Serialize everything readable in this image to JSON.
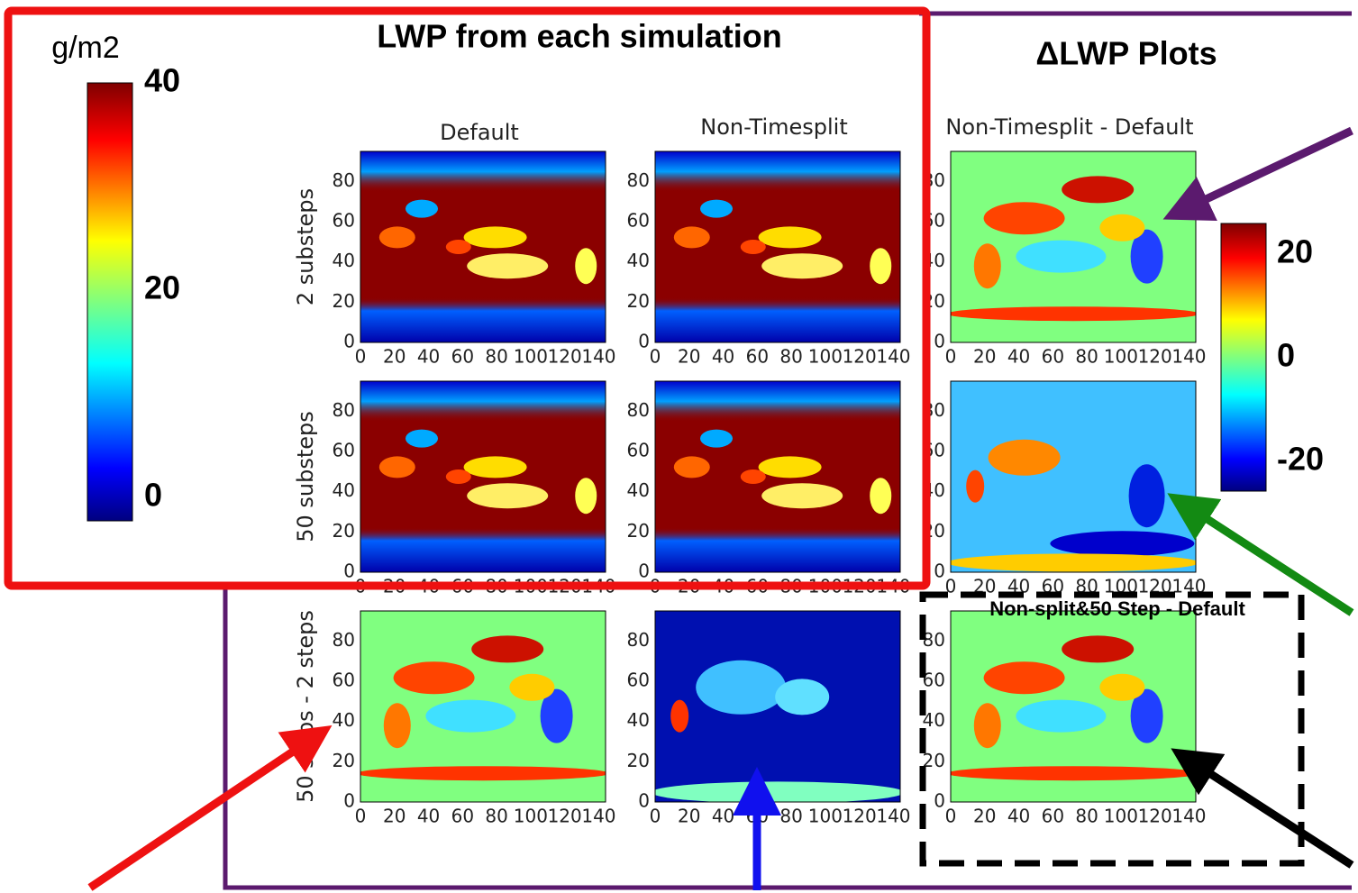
{
  "header": {
    "title": "LWP from each simulation",
    "delta_title": "ΔLWP Plots",
    "unit": "g/m2"
  },
  "colorbars": {
    "left": [
      "40",
      "20",
      "0"
    ],
    "right": [
      "20",
      "0",
      "-20"
    ]
  },
  "columns": [
    "Default",
    "Non-Timesplit",
    "Non-Timesplit - Default"
  ],
  "rows": [
    "2 substeps",
    "50 substeps",
    "50 steps - 2 steps"
  ],
  "axes": {
    "x_ticks": [
      "0",
      "20",
      "40",
      "60",
      "80",
      "100",
      "120",
      "140"
    ],
    "y_ticks": [
      "0",
      "20",
      "40",
      "60",
      "80"
    ]
  },
  "annotation": "Non-split&50 Step - Default"
}
